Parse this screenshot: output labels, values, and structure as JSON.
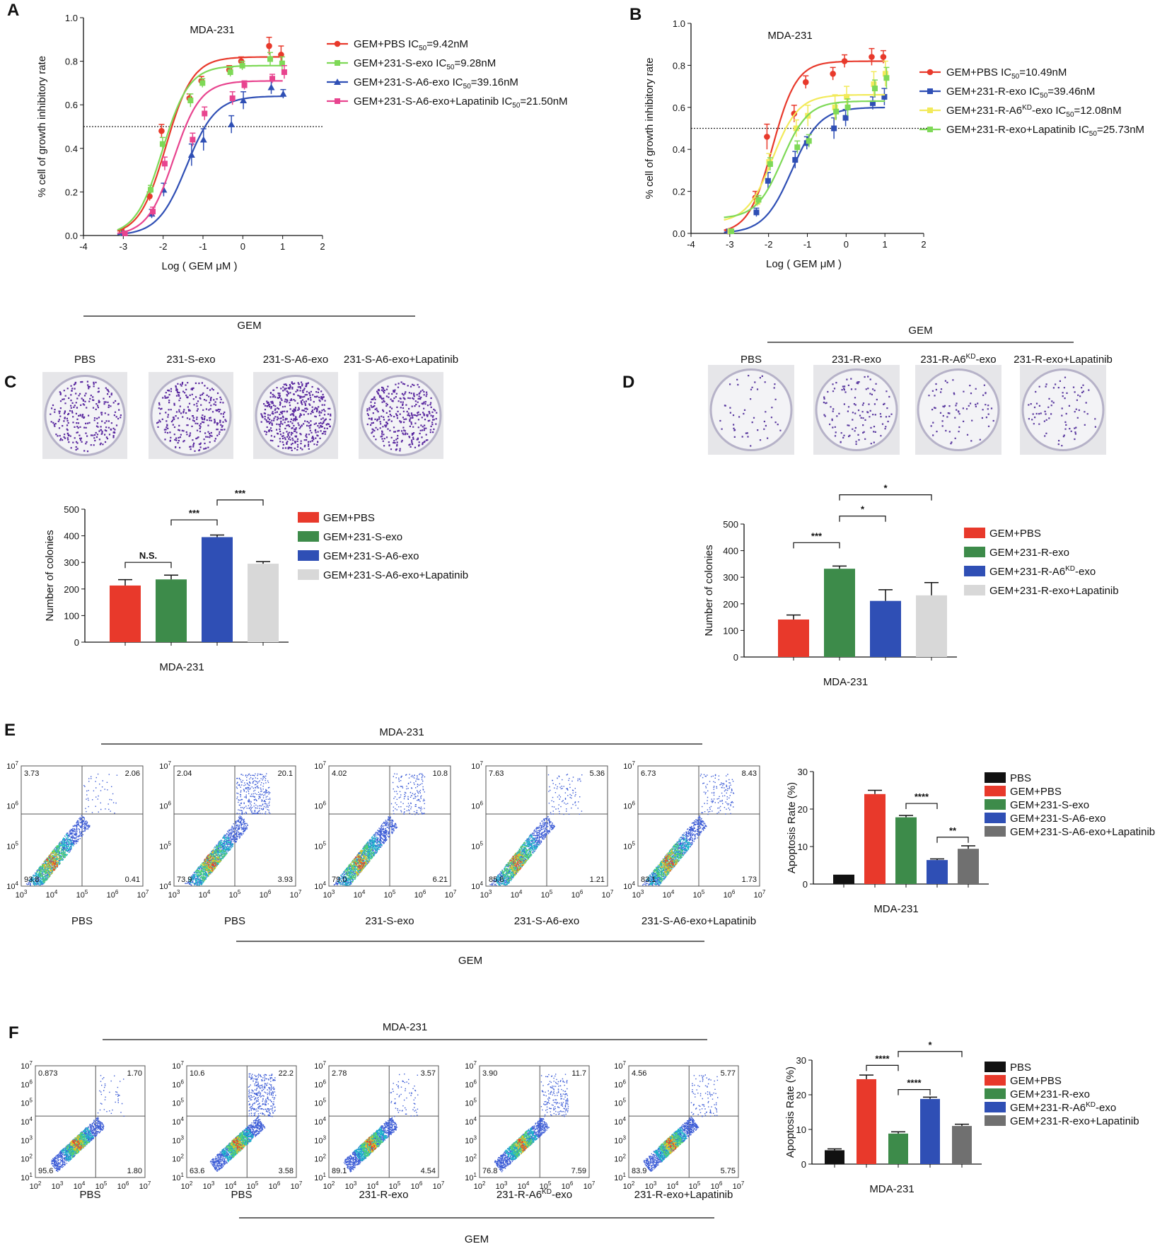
{
  "figure": {
    "panels": [
      "A",
      "B",
      "C",
      "D",
      "E",
      "F"
    ],
    "cell_line": "MDA-231",
    "gem_label": "GEM",
    "colors": {
      "red": "#e8392b",
      "green": "#3d8b4a",
      "lightgreen": "#7ed957",
      "blue": "#2f4fb5",
      "pink": "#e8448f",
      "yellow": "#f2ea5a",
      "lightgray": "#d8d8d8",
      "gray": "#707070",
      "black": "#111111"
    }
  },
  "panel_A": {
    "chart_data": {
      "type": "line",
      "title": "MDA-231",
      "xlabel": "Log ( GEM μM )",
      "ylabel": "% cell of growth inhibitory rate",
      "xlim": [
        -4,
        2
      ],
      "ylim": [
        0,
        1.0
      ],
      "xticks": [
        "-4",
        "-3",
        "-2",
        "-1",
        "0",
        "1",
        "2"
      ],
      "yticks": [
        "0.0",
        "0.2",
        "0.4",
        "0.6",
        "0.8",
        "1.0"
      ],
      "threshold": 0.5,
      "x": [
        -3,
        -2.3,
        -2,
        -1.3,
        -1,
        -0.3,
        0,
        0.7,
        1
      ],
      "series": [
        {
          "name": "GEM+PBS IC50=9.42nM",
          "legend": {
            "pre": "GEM+PBS IC",
            "sub": "50",
            "post": "=9.42nM"
          },
          "color": "red",
          "marker": "circle",
          "values": [
            0.02,
            0.18,
            0.48,
            0.63,
            0.71,
            0.76,
            0.8,
            0.87,
            0.83
          ],
          "err": [
            0.01,
            0.02,
            0.03,
            0.02,
            0.02,
            0.02,
            0.02,
            0.04,
            0.04
          ],
          "fit": {
            "bottom": 0.0,
            "top": 0.82,
            "logIC50": -1.93,
            "hill": 1.3
          }
        },
        {
          "name": "GEM+231-S-exo IC50=9.28nM",
          "legend": {
            "pre": "GEM+231-S-exo IC",
            "sub": "50",
            "post": "=9.28nM"
          },
          "color": "lightgreen",
          "marker": "square",
          "values": [
            0.01,
            0.21,
            0.42,
            0.62,
            0.7,
            0.75,
            0.78,
            0.81,
            0.79
          ],
          "err": [
            0.01,
            0.02,
            0.03,
            0.03,
            0.02,
            0.02,
            0.02,
            0.03,
            0.03
          ],
          "fit": {
            "bottom": 0.0,
            "top": 0.78,
            "logIC50": -2.02,
            "hill": 1.3
          }
        },
        {
          "name": "GEM+231-S-A6-exo IC50=39.16nM",
          "legend": {
            "pre": "GEM+231-S-A6-exo IC",
            "sub": "50",
            "post": "=39.16nM"
          },
          "color": "blue",
          "marker": "triangle",
          "values": [
            0.01,
            0.1,
            0.21,
            0.37,
            0.44,
            0.51,
            0.62,
            0.68,
            0.65
          ],
          "err": [
            0.01,
            0.02,
            0.03,
            0.05,
            0.05,
            0.04,
            0.04,
            0.03,
            0.02
          ],
          "fit": {
            "bottom": 0.0,
            "top": 0.64,
            "logIC50": -1.41,
            "hill": 1.2
          }
        },
        {
          "name": "GEM+231-S-A6-exo+Lapatinib IC50=21.50nM",
          "legend": {
            "pre": "GEM+231-S-A6-exo+Lapatinib IC",
            "sub": "50",
            "post": "=21.50nM"
          },
          "color": "pink",
          "marker": "square",
          "values": [
            0.01,
            0.11,
            0.33,
            0.44,
            0.56,
            0.63,
            0.69,
            0.72,
            0.75
          ],
          "err": [
            0.01,
            0.02,
            0.03,
            0.03,
            0.03,
            0.03,
            0.02,
            0.02,
            0.03
          ],
          "fit": {
            "bottom": 0.0,
            "top": 0.71,
            "logIC50": -1.73,
            "hill": 1.3
          }
        }
      ]
    }
  },
  "panel_B": {
    "chart_data": {
      "type": "line",
      "title": "MDA-231",
      "xlabel": "Log ( GEM μM )",
      "ylabel": "% cell of growth inhibitory rate",
      "xlim": [
        -4,
        2
      ],
      "ylim": [
        0,
        1.0
      ],
      "xticks": [
        "-4",
        "-3",
        "-2",
        "-1",
        "0",
        "1",
        "2"
      ],
      "yticks": [
        "0.0",
        "0.2",
        "0.4",
        "0.6",
        "0.8",
        "1.0"
      ],
      "threshold": 0.5,
      "x": [
        -3,
        -2.3,
        -2,
        -1.3,
        -1,
        -0.3,
        0,
        0.7,
        1
      ],
      "series": [
        {
          "name": "GEM+PBS IC50=10.49nM",
          "legend": {
            "pre": "GEM+PBS IC",
            "sub": "50",
            "post": "=10.49nM"
          },
          "color": "red",
          "marker": "circle",
          "values": [
            0.01,
            0.17,
            0.46,
            0.57,
            0.72,
            0.76,
            0.82,
            0.84,
            0.84
          ],
          "err": [
            0.01,
            0.03,
            0.06,
            0.04,
            0.03,
            0.03,
            0.03,
            0.04,
            0.03
          ],
          "fit": {
            "bottom": 0.0,
            "top": 0.82,
            "logIC50": -1.9,
            "hill": 1.4
          }
        },
        {
          "name": "GEM+231-R-exo IC50=39.46nM",
          "legend": {
            "pre": "GEM+231-R-exo IC",
            "sub": "50",
            "post": "=39.46nM"
          },
          "color": "blue",
          "marker": "square",
          "values": [
            0.01,
            0.1,
            0.25,
            0.35,
            0.43,
            0.5,
            0.55,
            0.62,
            0.65
          ],
          "err": [
            0.01,
            0.02,
            0.04,
            0.04,
            0.03,
            0.05,
            0.04,
            0.03,
            0.04
          ],
          "fit": {
            "bottom": 0.0,
            "top": 0.6,
            "logIC50": -1.4,
            "hill": 1.2
          }
        },
        {
          "name": "GEM+231-R-A6KD-exo IC50=12.08nM",
          "legend": {
            "pre": "GEM+231-R-A6",
            "sup": "KD",
            "mid": "-exo IC",
            "sub": "50",
            "post": "=12.08nM"
          },
          "color": "yellow",
          "marker": "square",
          "values": [
            0.01,
            0.15,
            0.34,
            0.5,
            0.56,
            0.6,
            0.65,
            0.71,
            0.76
          ],
          "err": [
            0.01,
            0.02,
            0.04,
            0.04,
            0.05,
            0.06,
            0.05,
            0.06,
            0.06
          ],
          "fit": {
            "bottom": 0.05,
            "top": 0.66,
            "logIC50": -1.9,
            "hill": 1.3
          }
        },
        {
          "name": "GEM+231-R-exo+Lapatinib IC50=25.73nM",
          "legend": {
            "pre": "GEM+231-R-exo+Lapatinib IC",
            "sub": "50",
            "post": "=25.73nM"
          },
          "color": "lightgreen",
          "marker": "square",
          "values": [
            0.01,
            0.16,
            0.33,
            0.41,
            0.44,
            0.58,
            0.6,
            0.69,
            0.74
          ],
          "err": [
            0.01,
            0.02,
            0.03,
            0.03,
            0.03,
            0.04,
            0.04,
            0.04,
            0.05
          ],
          "fit": {
            "bottom": 0.07,
            "top": 0.63,
            "logIC50": -1.65,
            "hill": 1.3
          }
        }
      ]
    }
  },
  "panel_C": {
    "header": "GEM",
    "dish_labels": [
      "PBS",
      "231-S-exo",
      "231-S-A6-exo",
      "231-S-A6-exo+Lapatinib"
    ],
    "chart_data": {
      "type": "bar",
      "xlabel": "MDA-231",
      "ylabel": "Number of colonies",
      "ylim": [
        0,
        500
      ],
      "yticks": [
        "0",
        "100",
        "200",
        "300",
        "400",
        "500"
      ],
      "categories": [
        "GEM+PBS",
        "GEM+231-S-exo",
        "GEM+231-S-A6-exo",
        "GEM+231-S-A6-exo+Lapatinib"
      ],
      "legend": [
        {
          "pre": "GEM+PBS"
        },
        {
          "pre": "GEM+231-S-exo"
        },
        {
          "pre": "GEM+231-S-A6-exo"
        },
        {
          "pre": "GEM+231-S-A6-exo+Lapatinib"
        }
      ],
      "values": [
        213,
        236,
        395,
        295
      ],
      "err": [
        22,
        16,
        8,
        8
      ],
      "colors": [
        "red",
        "green",
        "blue",
        "lightgray"
      ],
      "brackets": [
        {
          "from": 0,
          "to": 1,
          "label": "N.S.",
          "y": 300
        },
        {
          "from": 1,
          "to": 2,
          "label": "***",
          "y": 460
        },
        {
          "from": 2,
          "to": 3,
          "label": "***",
          "y": 535
        }
      ]
    }
  },
  "panel_D": {
    "header": "GEM",
    "dish_labels": [
      {
        "pre": "PBS"
      },
      {
        "pre": "231-R-exo"
      },
      {
        "pre": "231-R-A6",
        "sup": "KD",
        "post": "-exo"
      },
      {
        "pre": "231-R-exo+Lapatinib"
      }
    ],
    "chart_data": {
      "type": "bar",
      "xlabel": "MDA-231",
      "ylabel": "Number of colonies",
      "ylim": [
        0,
        500
      ],
      "yticks": [
        "0",
        "100",
        "200",
        "300",
        "400",
        "500"
      ],
      "categories": [
        "GEM+PBS",
        "GEM+231-R-exo",
        "GEM+231-R-A6KD-exo",
        "GEM+231-R-exo+Lapatinib"
      ],
      "legend": [
        {
          "pre": "GEM+PBS"
        },
        {
          "pre": "GEM+231-R-exo"
        },
        {
          "pre": "GEM+231-R-A6",
          "sup": "KD",
          "post": "-exo"
        },
        {
          "pre": "GEM+231-R-exo+Lapatinib"
        }
      ],
      "values": [
        141,
        332,
        211,
        232
      ],
      "err": [
        17,
        10,
        42,
        48
      ],
      "colors": [
        "red",
        "green",
        "blue",
        "lightgray"
      ],
      "brackets": [
        {
          "from": 0,
          "to": 1,
          "label": "***",
          "y": 430
        },
        {
          "from": 1,
          "to": 2,
          "label": "*",
          "y": 530
        },
        {
          "from": 1,
          "to": 3,
          "label": "*",
          "y": 610
        }
      ]
    }
  },
  "panel_E": {
    "header": "MDA-231",
    "footer": "GEM",
    "plot_labels": [
      {
        "pre": "PBS"
      },
      {
        "pre": "PBS"
      },
      {
        "pre": "231-S-exo"
      },
      {
        "pre": "231-S-A6-exo"
      },
      {
        "pre": "231-S-A6-exo+Lapatinib"
      }
    ],
    "axis_ticks": [
      "10",
      "10",
      "10",
      "10",
      "10"
    ],
    "axis_exps": [
      "3",
      "4",
      "5",
      "6",
      "7"
    ],
    "y_axis_exps": [
      "4",
      "5",
      "6",
      "7"
    ],
    "flow_quadrants": [
      {
        "ul": "3.73",
        "ur": "2.06",
        "ll": "93.8",
        "lr": "0.41"
      },
      {
        "ul": "2.04",
        "ur": "20.1",
        "ll": "73.9",
        "lr": "3.93"
      },
      {
        "ul": "4.02",
        "ur": "10.8",
        "ll": "79.0",
        "lr": "6.21"
      },
      {
        "ul": "7.63",
        "ur": "5.36",
        "ll": "85.8",
        "lr": "1.21"
      },
      {
        "ul": "6.73",
        "ur": "8.43",
        "ll": "83.1",
        "lr": "1.73"
      }
    ],
    "chart_data": {
      "type": "bar",
      "xlabel": "MDA-231",
      "ylabel": "Apoptosis Rate (%)",
      "ylim": [
        0,
        30
      ],
      "yticks": [
        "0",
        "10",
        "20",
        "30"
      ],
      "categories": [
        "PBS",
        "GEM+PBS",
        "GEM+231-S-exo",
        "GEM+231-S-A6-exo",
        "GEM+231-S-A6-exo+Lapatinib"
      ],
      "legend": [
        {
          "pre": "PBS"
        },
        {
          "pre": "GEM+PBS"
        },
        {
          "pre": "GEM+231-S-exo"
        },
        {
          "pre": "GEM+231-S-A6-exo"
        },
        {
          "pre": "GEM+231-S-A6-exo+Lapatinib"
        }
      ],
      "values": [
        2.5,
        24,
        17.8,
        6.4,
        9.4
      ],
      "err": [
        0,
        1.0,
        0.5,
        0.3,
        0.8
      ],
      "colors": [
        "black",
        "red",
        "green",
        "blue",
        "gray"
      ],
      "brackets": [
        {
          "from": 2,
          "to": 3,
          "label": "****",
          "y": 21.5
        },
        {
          "from": 3,
          "to": 4,
          "label": "**",
          "y": 12.5
        }
      ]
    }
  },
  "panel_F": {
    "header": "MDA-231",
    "footer": "GEM",
    "plot_labels": [
      {
        "pre": "PBS"
      },
      {
        "pre": "PBS"
      },
      {
        "pre": "231-R-exo"
      },
      {
        "pre": "231-R-A6",
        "sup": "KD",
        "post": "-exo"
      },
      {
        "pre": "231-R-exo+Lapatinib"
      }
    ],
    "axis_ticks": [
      "10",
      "10",
      "10",
      "10",
      "10",
      "10"
    ],
    "axis_exps": [
      "2",
      "3",
      "4",
      "5",
      "6",
      "7"
    ],
    "y_axis_exps": [
      "1",
      "2",
      "3",
      "4",
      "5",
      "6",
      "7"
    ],
    "flow_quadrants": [
      {
        "ul": "0.873",
        "ur": "1.70",
        "ll": "95.6",
        "lr": "1.80"
      },
      {
        "ul": "10.6",
        "ur": "22.2",
        "ll": "63.6",
        "lr": "3.58"
      },
      {
        "ul": "2.78",
        "ur": "3.57",
        "ll": "89.1",
        "lr": "4.54"
      },
      {
        "ul": "3.90",
        "ur": "11.7",
        "ll": "76.8",
        "lr": "7.59"
      },
      {
        "ul": "4.56",
        "ur": "5.77",
        "ll": "83.9",
        "lr": "5.75"
      }
    ],
    "chart_data": {
      "type": "bar",
      "xlabel": "MDA-231",
      "ylabel": "Apoptosis Rate (%)",
      "ylim": [
        0,
        30
      ],
      "yticks": [
        "0",
        "10",
        "20",
        "30"
      ],
      "categories": [
        "PBS",
        "GEM+PBS",
        "GEM+231-R-exo",
        "GEM+231-R-A6KD-exo",
        "GEM+231-R-exo+Lapatinib"
      ],
      "legend": [
        {
          "pre": "PBS"
        },
        {
          "pre": "GEM+PBS"
        },
        {
          "pre": "GEM+231-R-exo"
        },
        {
          "pre": "GEM+231-R-A6",
          "sup": "KD",
          "post": "-exo"
        },
        {
          "pre": "GEM+231-R-exo+Lapatinib"
        }
      ],
      "values": [
        4.0,
        24.5,
        8.8,
        18.8,
        11.0
      ],
      "err": [
        0.4,
        1.2,
        0.5,
        0.5,
        0.5
      ],
      "colors": [
        "black",
        "red",
        "green",
        "blue",
        "gray"
      ],
      "brackets": [
        {
          "from": 1,
          "to": 2,
          "label": "****",
          "y": 28.5
        },
        {
          "from": 2,
          "to": 3,
          "label": "****",
          "y": 21.5
        },
        {
          "from": 2,
          "to": 4,
          "label": "*",
          "y": 32.5
        }
      ]
    }
  }
}
